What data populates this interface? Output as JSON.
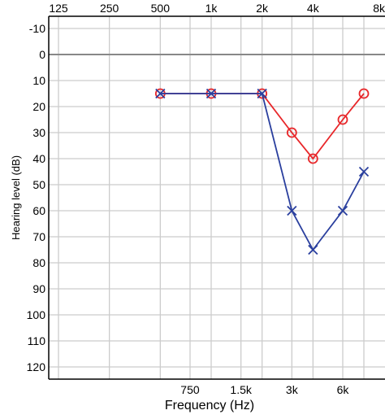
{
  "chart_data": {
    "type": "line",
    "subtype": "audiogram",
    "xlabel": "Frequency (Hz)",
    "ylabel": "Hearing level (dB)",
    "x_scale": "log",
    "y_inverted": true,
    "ylim": [
      -10,
      120
    ],
    "grid": true,
    "x_ticks_top": [
      {
        "value": 125,
        "label": "125"
      },
      {
        "value": 250,
        "label": "250"
      },
      {
        "value": 500,
        "label": "500"
      },
      {
        "value": 1000,
        "label": "1k"
      },
      {
        "value": 2000,
        "label": "2k"
      },
      {
        "value": 4000,
        "label": "4k"
      },
      {
        "value": 8000,
        "label": "8k"
      }
    ],
    "x_ticks_bottom": [
      {
        "value": 750,
        "label": "750"
      },
      {
        "value": 1500,
        "label": "1.5k"
      },
      {
        "value": 3000,
        "label": "3k"
      },
      {
        "value": 6000,
        "label": "6k"
      }
    ],
    "y_ticks": [
      {
        "value": -10,
        "label": "-10"
      },
      {
        "value": 0,
        "label": "0"
      },
      {
        "value": 10,
        "label": "10"
      },
      {
        "value": 20,
        "label": "20"
      },
      {
        "value": 30,
        "label": "30"
      },
      {
        "value": 40,
        "label": "40"
      },
      {
        "value": 50,
        "label": "50"
      },
      {
        "value": 60,
        "label": "60"
      },
      {
        "value": 70,
        "label": "70"
      },
      {
        "value": 80,
        "label": "80"
      },
      {
        "value": 90,
        "label": "90"
      },
      {
        "value": 100,
        "label": "100"
      },
      {
        "value": 110,
        "label": "110"
      },
      {
        "value": 120,
        "label": "120"
      }
    ],
    "series": [
      {
        "marker": "circle",
        "color": "#e8272a",
        "x": [
          500,
          1000,
          2000,
          3000,
          4000,
          6000,
          8000
        ],
        "y": [
          15,
          15,
          15,
          30,
          40,
          25,
          15
        ]
      },
      {
        "marker": "cross",
        "color": "#2a3f9e",
        "x": [
          500,
          1000,
          2000,
          3000,
          4000,
          6000,
          8000
        ],
        "y": [
          15,
          15,
          15,
          60,
          75,
          60,
          45
        ]
      }
    ],
    "zero_line_color": "#888888",
    "grid_color": "#cccccc"
  }
}
